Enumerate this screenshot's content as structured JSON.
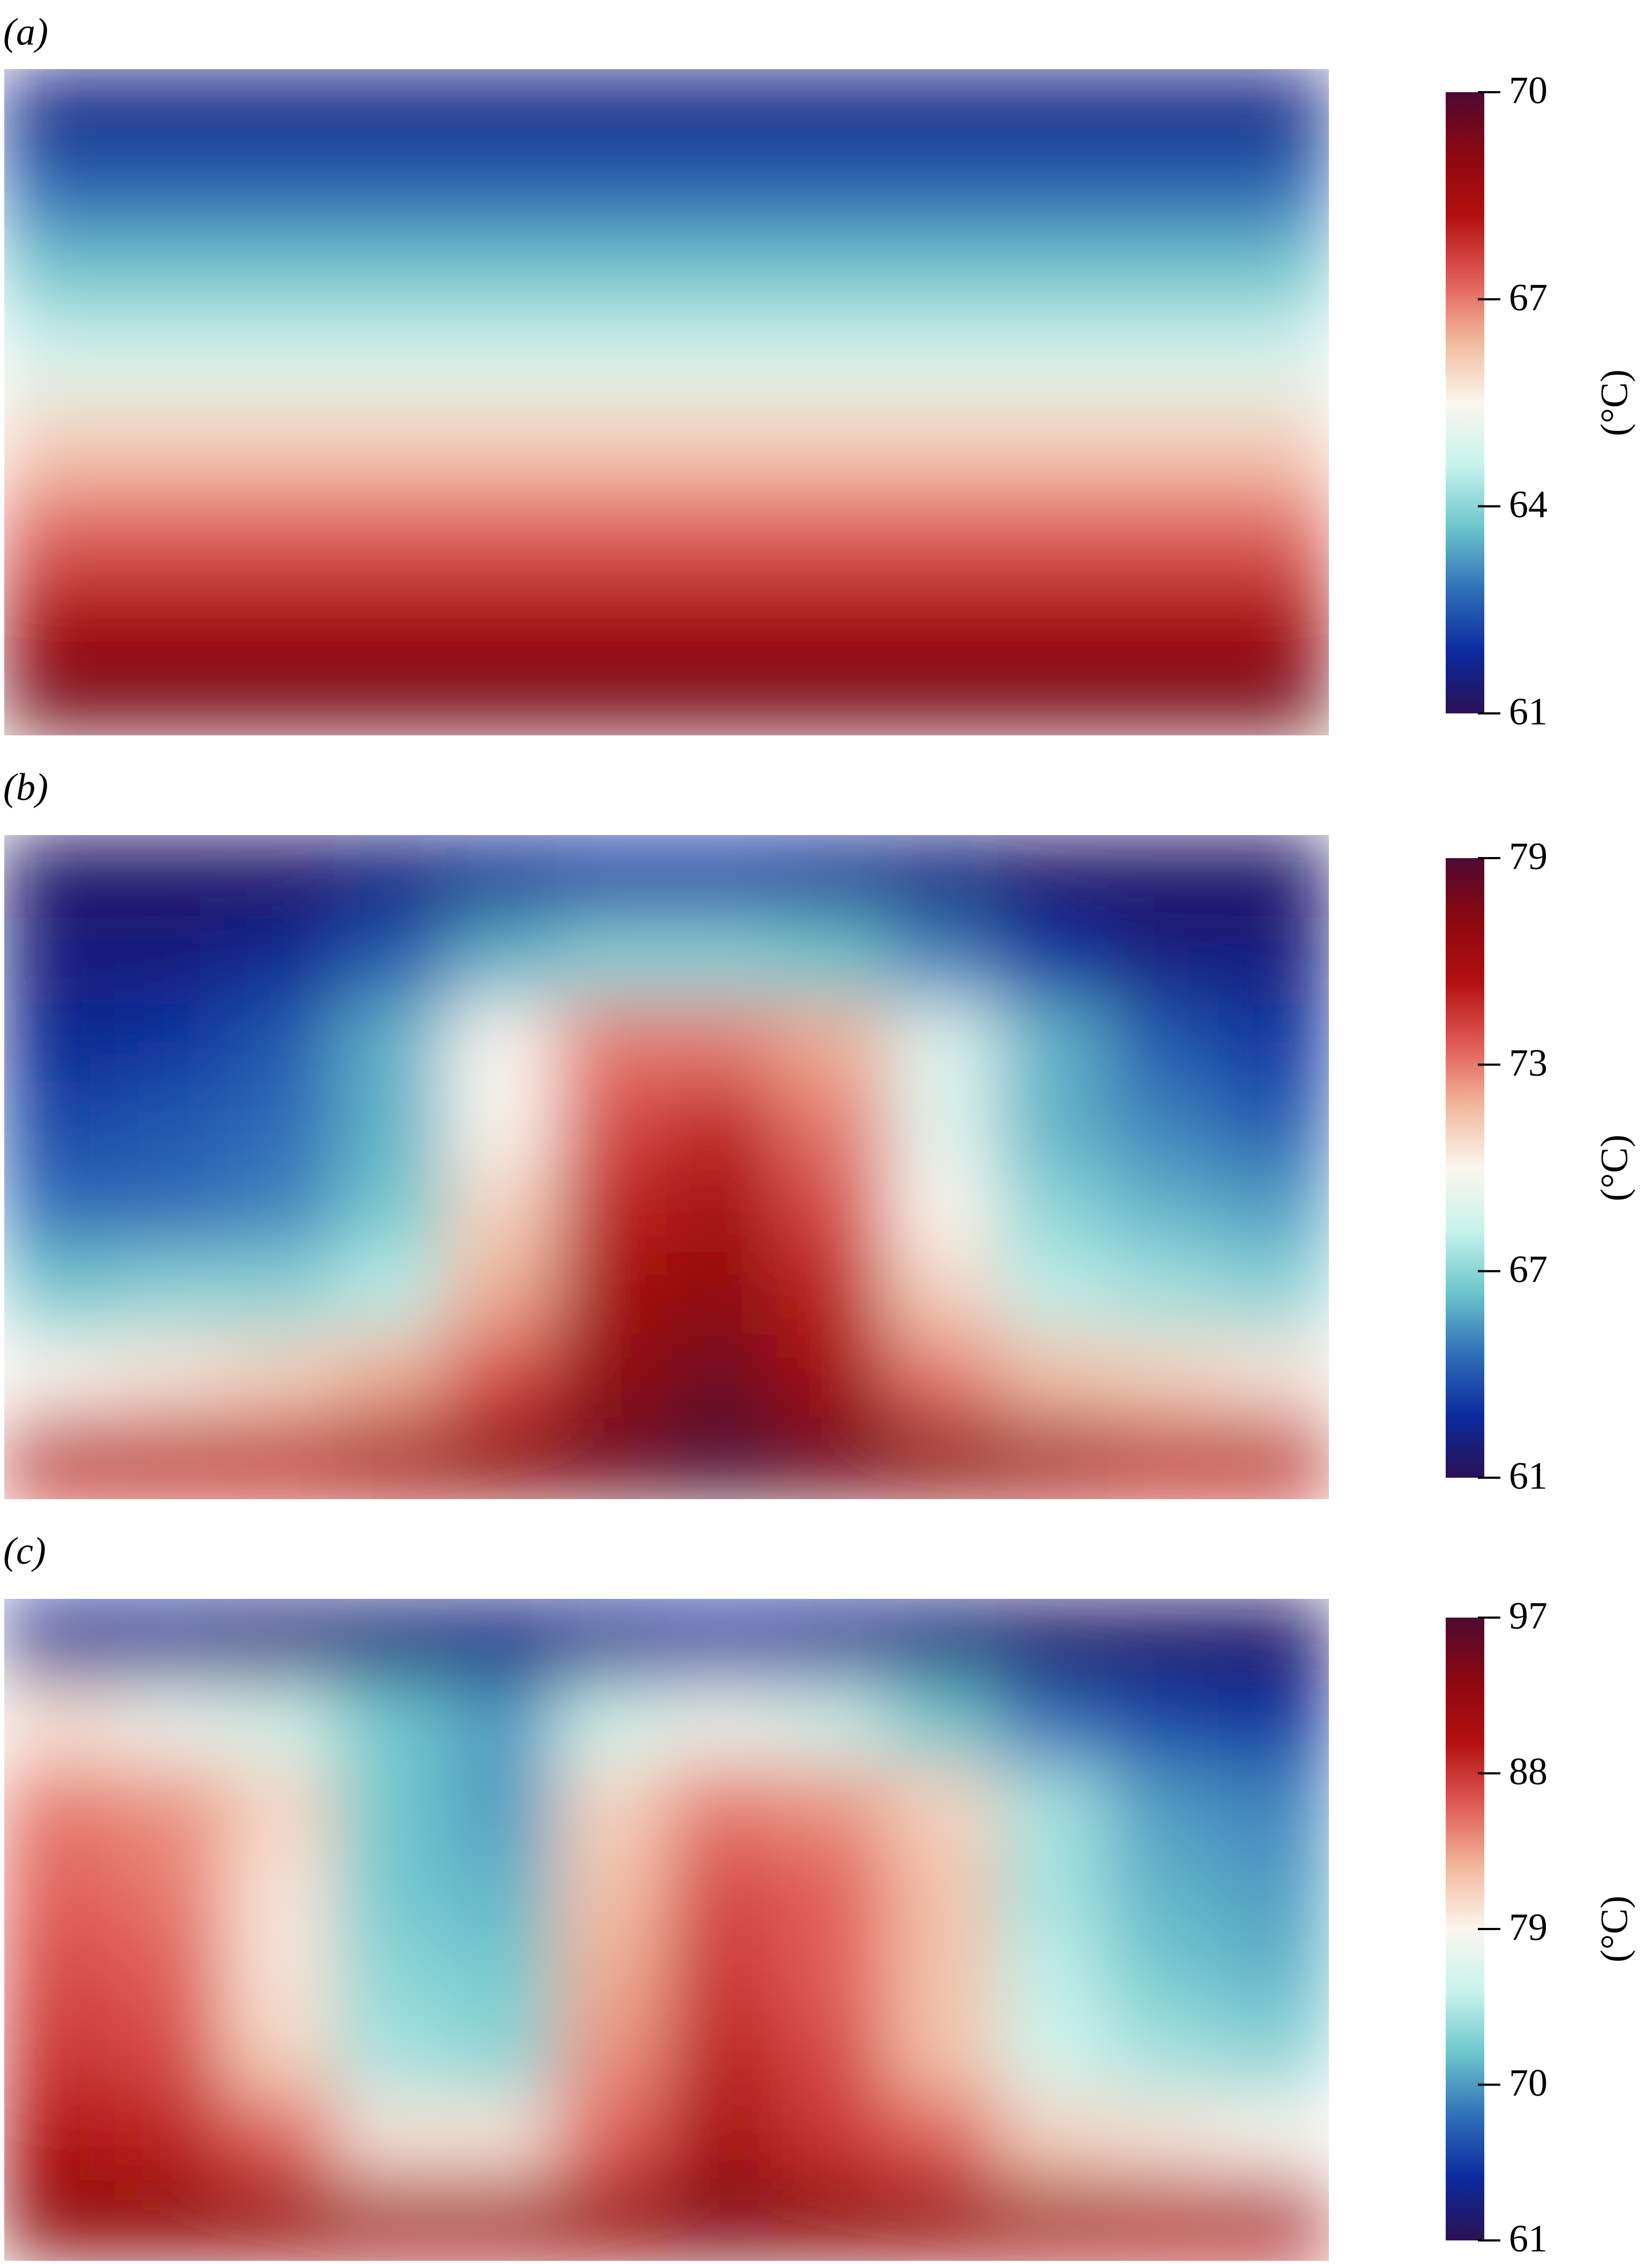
{
  "chart_data": [
    {
      "type": "heatmap",
      "panel_label": "(a)",
      "colorbar_label": "(°C)",
      "zlim": [
        61,
        70
      ],
      "zticks": [
        61,
        64,
        67,
        70
      ],
      "colormap": [
        "#2a1155",
        "#0b2a9e",
        "#2f6fb8",
        "#6cc6cc",
        "#c8f3ec",
        "#fbf6ee",
        "#f2b89c",
        "#e05a55",
        "#b3100f",
        "#8c0710",
        "#4e0a33"
      ],
      "values": [
        [
          61.6,
          61.6,
          61.6,
          61.6,
          61.6,
          61.6,
          61.6,
          61.6,
          61.6,
          61.6,
          61.6,
          61.6
        ],
        [
          62.7,
          62.7,
          62.7,
          62.7,
          62.7,
          62.7,
          62.7,
          62.7,
          62.7,
          62.7,
          62.7,
          62.7
        ],
        [
          63.8,
          63.8,
          63.8,
          63.8,
          63.8,
          63.8,
          63.8,
          63.8,
          63.8,
          63.8,
          63.8,
          63.8
        ],
        [
          64.9,
          64.9,
          64.9,
          64.9,
          64.9,
          64.9,
          64.9,
          64.9,
          64.9,
          64.9,
          64.9,
          64.9
        ],
        [
          66.1,
          66.1,
          66.1,
          66.1,
          66.1,
          66.1,
          66.1,
          66.1,
          66.1,
          66.1,
          66.1,
          66.1
        ],
        [
          67.2,
          67.2,
          67.2,
          67.2,
          67.2,
          67.2,
          67.2,
          67.2,
          67.2,
          67.2,
          67.2,
          67.2
        ],
        [
          68.3,
          68.3,
          68.3,
          68.3,
          68.3,
          68.3,
          68.3,
          68.3,
          68.3,
          68.3,
          68.3,
          68.3
        ],
        [
          69.4,
          69.4,
          69.4,
          69.4,
          69.4,
          69.4,
          69.4,
          69.4,
          69.4,
          69.4,
          69.4,
          69.4
        ]
      ]
    },
    {
      "type": "heatmap",
      "panel_label": "(b)",
      "colorbar_label": "(°C)",
      "zlim": [
        61,
        79
      ],
      "zticks": [
        61,
        67,
        73,
        79
      ],
      "colormap": [
        "#2a1155",
        "#0b2a9e",
        "#2f6fb8",
        "#6cc6cc",
        "#c8f3ec",
        "#fbf6ee",
        "#f2b89c",
        "#e05a55",
        "#b3100f",
        "#8c0710",
        "#4e0a33"
      ],
      "values": [
        [
          61.5,
          61.5,
          61.5,
          62,
          62.5,
          63,
          63,
          62.5,
          62,
          61.5,
          61.5,
          61.5
        ],
        [
          62,
          62,
          62.5,
          64,
          66,
          67,
          67,
          66.5,
          65,
          63,
          62,
          62
        ],
        [
          62.5,
          63,
          64,
          66,
          70,
          73,
          73,
          72,
          69,
          66,
          64,
          63
        ],
        [
          63.5,
          64,
          64.5,
          66,
          70,
          74,
          75,
          73,
          69,
          66,
          65,
          64
        ],
        [
          64.5,
          64.5,
          65,
          66.5,
          71,
          75,
          76,
          74,
          70,
          67,
          66,
          65.5
        ],
        [
          66.5,
          67,
          67,
          68,
          72,
          76,
          77,
          75,
          71,
          68,
          67.5,
          67
        ],
        [
          70,
          70.5,
          71,
          72,
          74,
          77,
          78,
          76,
          73,
          71.5,
          71,
          70.5
        ],
        [
          75,
          75,
          75,
          76,
          77,
          78,
          79,
          78,
          77,
          76,
          75,
          75
        ]
      ]
    },
    {
      "type": "heatmap",
      "panel_label": "(c)",
      "colorbar_label": "(°C)",
      "zlim": [
        61,
        97
      ],
      "zticks": [
        61,
        70,
        79,
        88,
        97
      ],
      "colormap": [
        "#2a1155",
        "#0b2a9e",
        "#2f6fb8",
        "#6cc6cc",
        "#c8f3ec",
        "#fbf6ee",
        "#f2b89c",
        "#e05a55",
        "#b3100f",
        "#8c0710",
        "#4e0a33"
      ],
      "values": [
        [
          64,
          64,
          63,
          63,
          63,
          64,
          65,
          64,
          63,
          62,
          62,
          62
        ],
        [
          80,
          78,
          76,
          72,
          70,
          76,
          78,
          76,
          72,
          68,
          66,
          65
        ],
        [
          85,
          84,
          81,
          72,
          70,
          81,
          85,
          84,
          81,
          74,
          70,
          69
        ],
        [
          86,
          85,
          80,
          72,
          71,
          82,
          87,
          86,
          82,
          74,
          71,
          70
        ],
        [
          87,
          86,
          80,
          73,
          72,
          83,
          88,
          86,
          82,
          75,
          72,
          71
        ],
        [
          88,
          87,
          81,
          74,
          73,
          84,
          89,
          87,
          82,
          76,
          74,
          73
        ],
        [
          90,
          89,
          86,
          80,
          80,
          86,
          91,
          88,
          86,
          81,
          80,
          79
        ],
        [
          93,
          93,
          92,
          91,
          91,
          92,
          94,
          93,
          92,
          91,
          90,
          90
        ]
      ]
    }
  ]
}
